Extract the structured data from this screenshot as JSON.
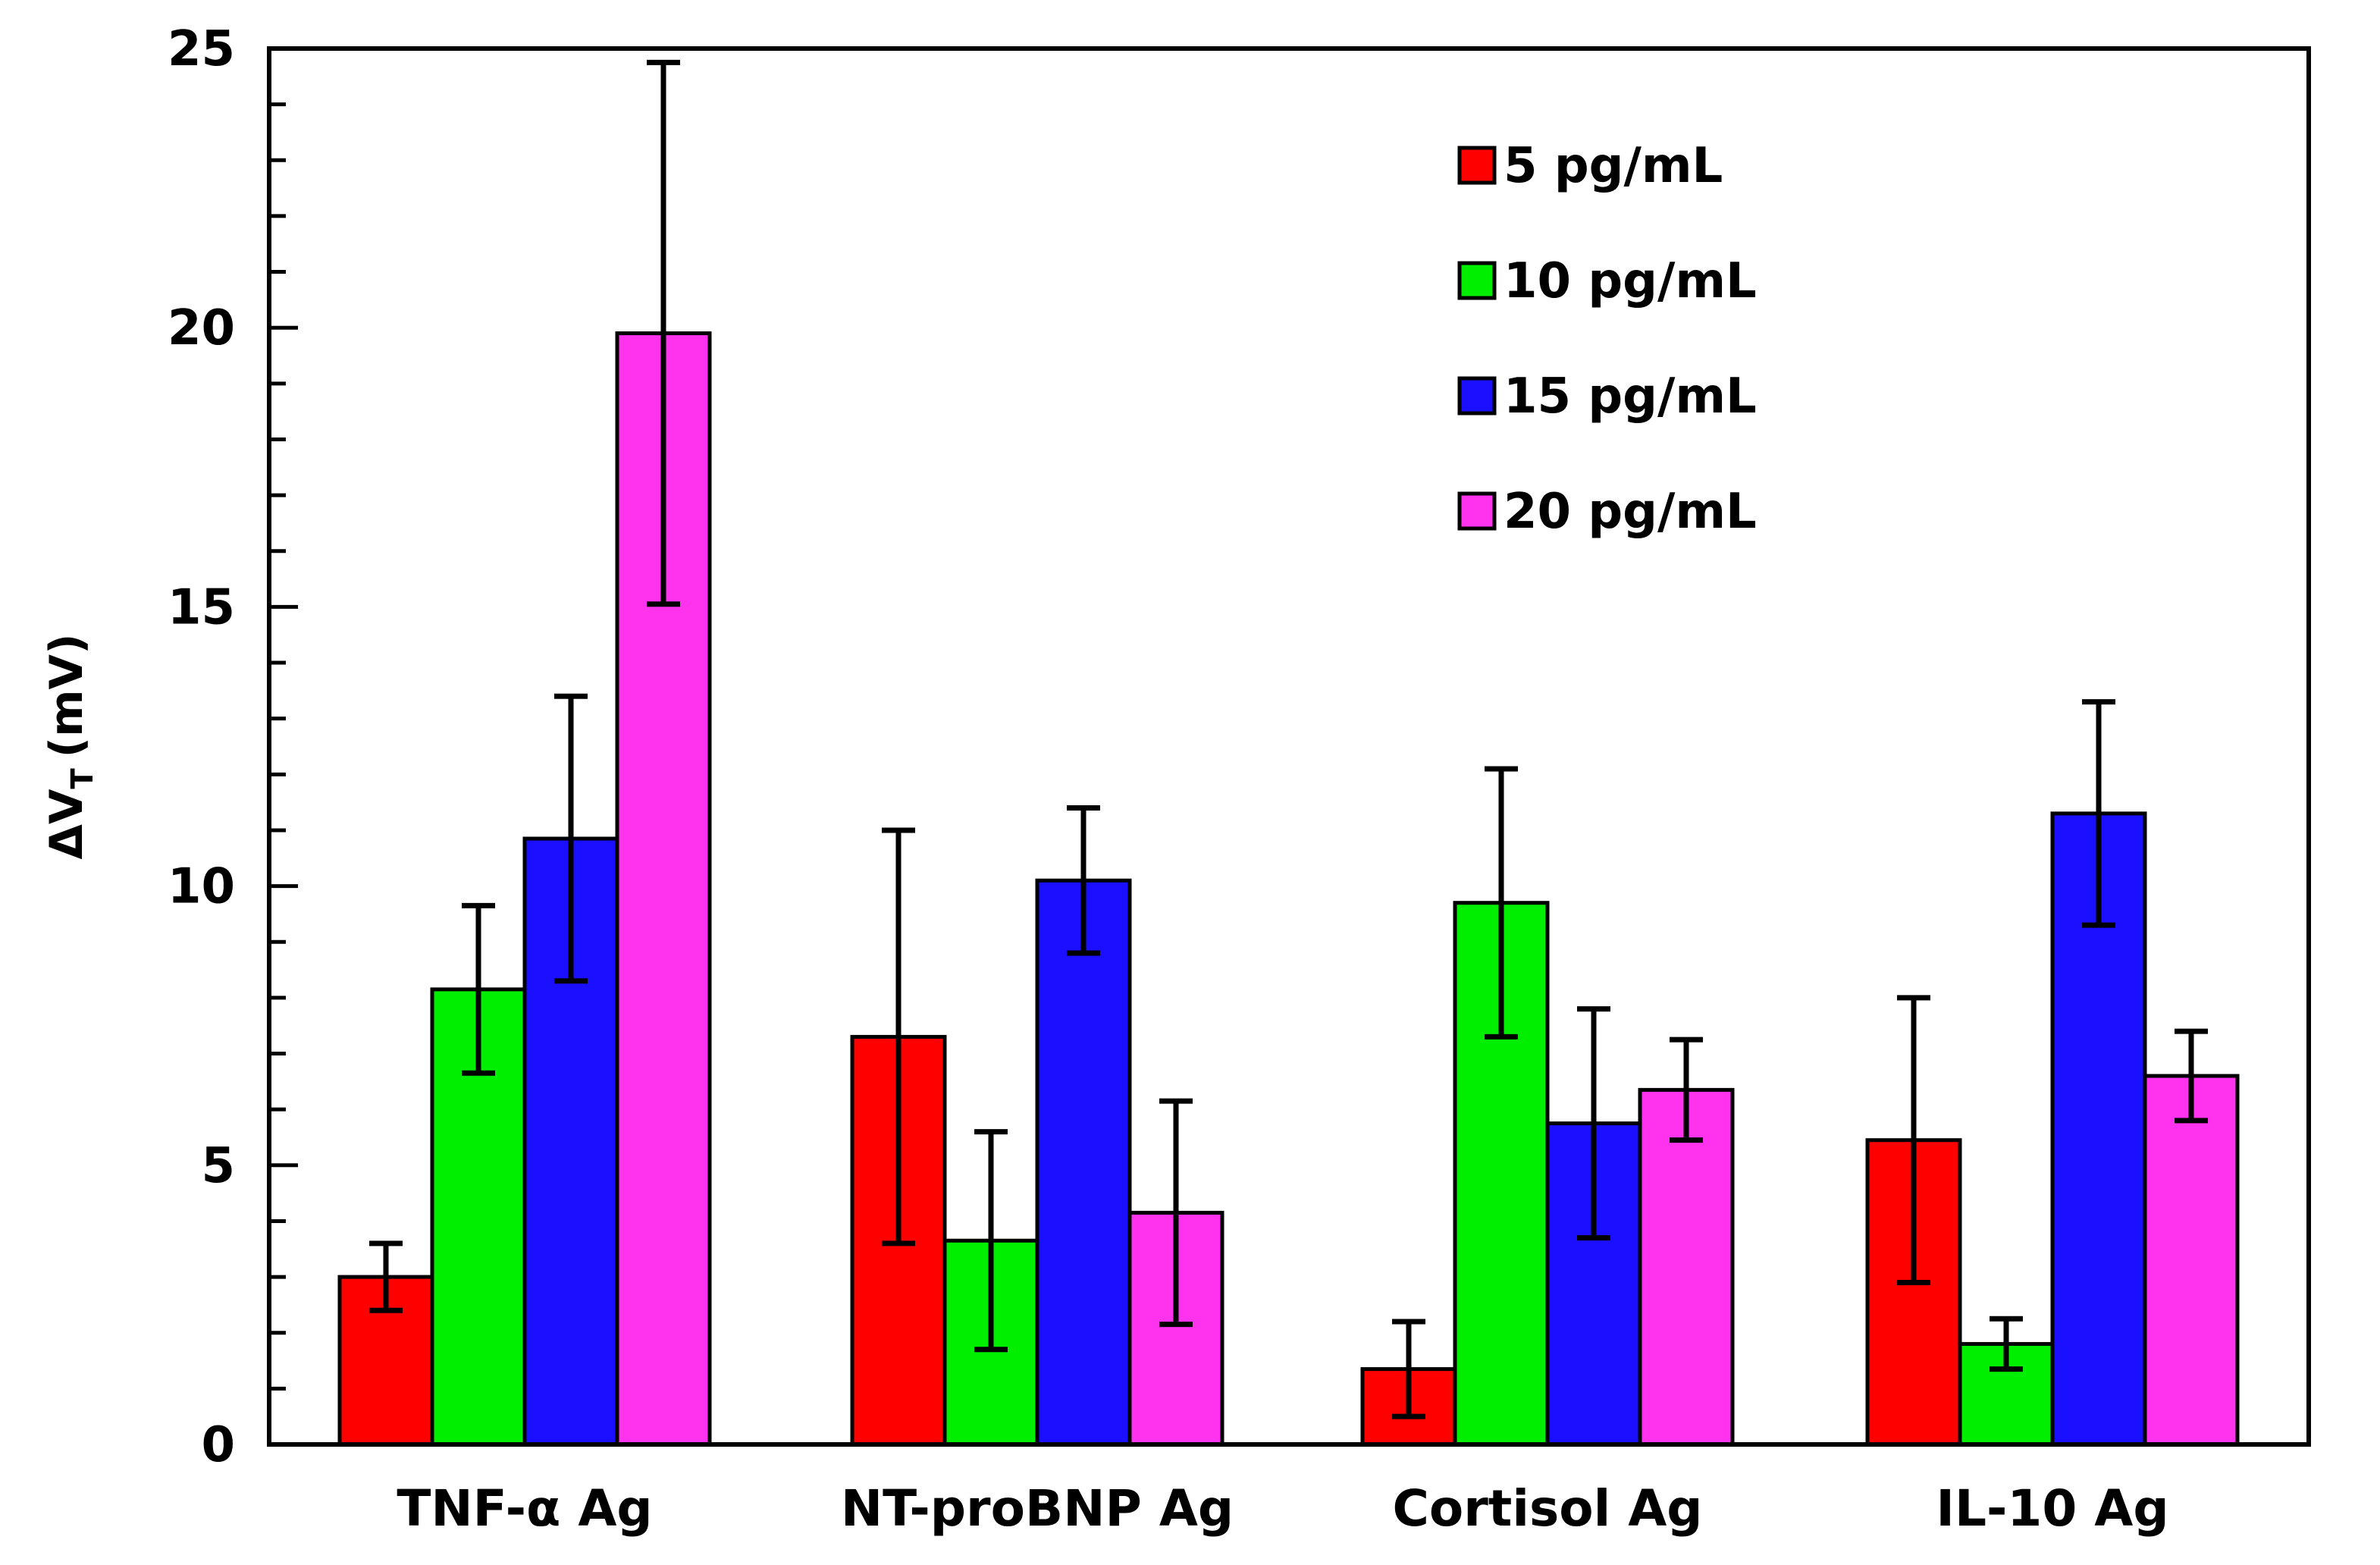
{
  "chart_data": {
    "type": "bar",
    "title": "",
    "xlabel": "",
    "ylabel_main": "ΔV",
    "ylabel_sub": "T",
    "ylabel_unit": "(mV)",
    "ylim": [
      0,
      25
    ],
    "yticks": [
      0,
      5,
      10,
      15,
      20,
      25
    ],
    "ytick_labels": [
      "0",
      "5",
      "10",
      "15",
      "20",
      "25"
    ],
    "minor_tick_step": 1,
    "grid": false,
    "legend_position": "top-right",
    "categories": [
      "TNF-α Ag",
      "NT-proBNP Ag",
      "Cortisol Ag",
      "IL-10 Ag"
    ],
    "series": [
      {
        "name": "5 pg/mL",
        "color": "#ff0000",
        "values": [
          3.0,
          7.3,
          1.35,
          5.45
        ],
        "errors": [
          0.6,
          3.7,
          0.85,
          2.55
        ]
      },
      {
        "name": "10 pg/mL",
        "color": "#00ee00",
        "values": [
          8.15,
          3.65,
          9.7,
          1.8
        ],
        "errors": [
          1.5,
          1.95,
          2.4,
          0.45
        ]
      },
      {
        "name": "15 pg/mL",
        "color": "#1a10ff",
        "values": [
          10.85,
          10.1,
          5.75,
          11.3
        ],
        "errors": [
          2.55,
          1.3,
          2.05,
          2.0
        ]
      },
      {
        "name": "20 pg/mL",
        "color": "#ff33ee",
        "values": [
          19.9,
          4.15,
          6.35,
          6.6
        ],
        "errors": [
          4.85,
          2.0,
          0.9,
          0.8
        ]
      }
    ]
  }
}
